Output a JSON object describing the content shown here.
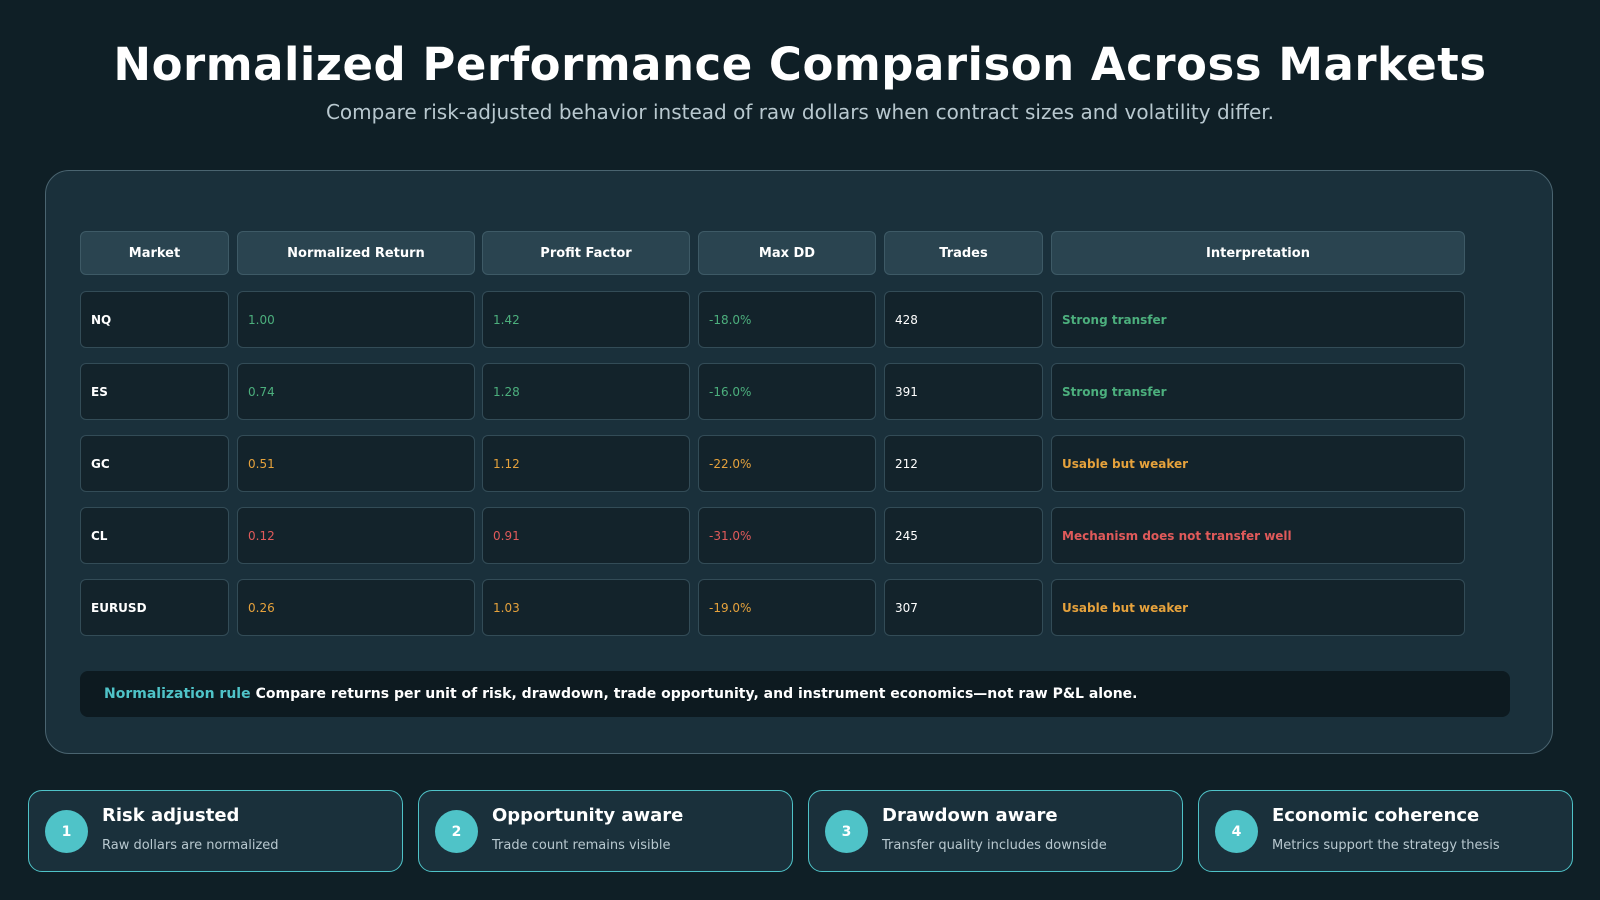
{
  "header": {
    "title": "Normalized Performance Comparison Across Markets",
    "subtitle": "Compare risk-adjusted behavior instead of raw dollars when contract sizes and volatility differ."
  },
  "table": {
    "columns": [
      "Market",
      "Normalized Return",
      "Profit Factor",
      "Max DD",
      "Trades",
      "Interpretation"
    ],
    "rows": [
      {
        "market": "NQ",
        "normalized_return": "1.00",
        "profit_factor": "1.42",
        "max_dd": "-18.0%",
        "trades": "428",
        "interpretation": "Strong transfer",
        "status": "good"
      },
      {
        "market": "ES",
        "normalized_return": "0.74",
        "profit_factor": "1.28",
        "max_dd": "-16.0%",
        "trades": "391",
        "interpretation": "Strong transfer",
        "status": "good"
      },
      {
        "market": "GC",
        "normalized_return": "0.51",
        "profit_factor": "1.12",
        "max_dd": "-22.0%",
        "trades": "212",
        "interpretation": "Usable but weaker",
        "status": "warn"
      },
      {
        "market": "CL",
        "normalized_return": "0.12",
        "profit_factor": "0.91",
        "max_dd": "-31.0%",
        "trades": "245",
        "interpretation": "Mechanism does not transfer well",
        "status": "bad"
      },
      {
        "market": "EURUSD",
        "normalized_return": "0.26",
        "profit_factor": "1.03",
        "max_dd": "-19.0%",
        "trades": "307",
        "interpretation": "Usable but weaker",
        "status": "warn"
      }
    ]
  },
  "rule": {
    "label": "Normalization rule",
    "text": "Compare returns per unit of risk, drawdown, trade opportunity, and instrument economics—not raw P&L alone."
  },
  "cards": [
    {
      "number": "1",
      "title": "Risk adjusted",
      "text": "Raw dollars are normalized"
    },
    {
      "number": "2",
      "title": "Opportunity aware",
      "text": "Trade count remains visible"
    },
    {
      "number": "3",
      "title": "Drawdown aware",
      "text": "Transfer quality includes downside"
    },
    {
      "number": "4",
      "title": "Economic coherence",
      "text": "Metrics support the strategy thesis"
    }
  ],
  "colors": {
    "background": "#0f1f26",
    "panel": "#1a303b",
    "accent": "#4fc3c8",
    "good": "#4caf7d",
    "warn": "#e6a23c",
    "bad": "#e05a5a"
  }
}
